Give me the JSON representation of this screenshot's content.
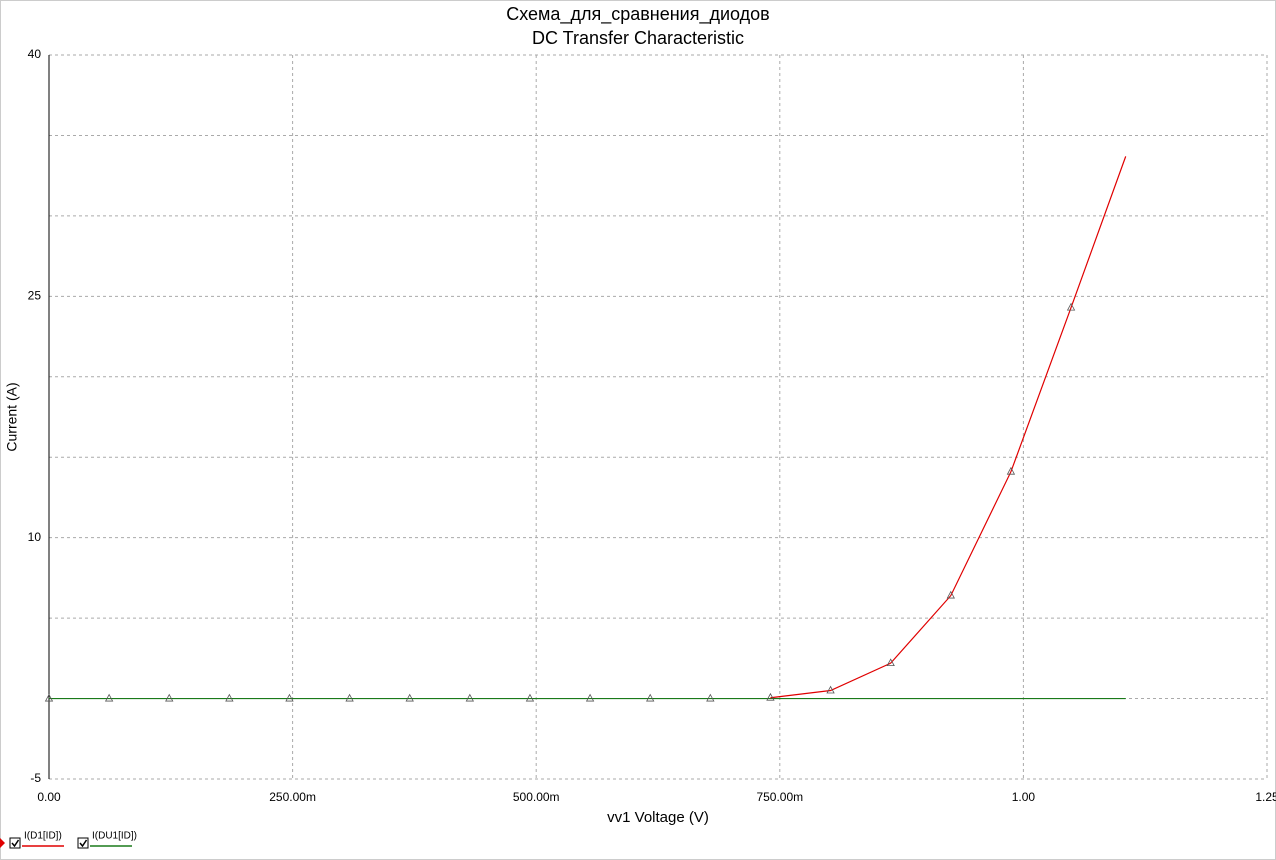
{
  "chart_data": {
    "type": "line",
    "title": "Схема_для_сравнения_диодов",
    "subtitle": "DC Transfer Characteristic",
    "x_label": "vv1 Voltage (V)",
    "y_label": "Current (A)",
    "xlim": [
      0,
      1.25
    ],
    "ylim": [
      -5,
      40
    ],
    "xticks": [
      {
        "value": 0,
        "label": "0.00"
      },
      {
        "value": 0.25,
        "label": "250.00m"
      },
      {
        "value": 0.5,
        "label": "500.00m"
      },
      {
        "value": 0.75,
        "label": "750.00m"
      },
      {
        "value": 1,
        "label": "1.00"
      },
      {
        "value": 1.25,
        "label": "1.25"
      }
    ],
    "yticks": [
      -5,
      10,
      25,
      40
    ],
    "minor_yticks": [
      0,
      5,
      15,
      20,
      30,
      35
    ],
    "grid": true,
    "legend": "bottom-left",
    "series": [
      {
        "name": "I(D1[ID])",
        "color": "#e00000",
        "x": [
          0.7404,
          0.8021,
          0.8638,
          0.9255,
          0.9872,
          1.0489,
          1.105
        ],
        "values": [
          0.05,
          0.5,
          2.2,
          6.4,
          14.1,
          24.3,
          33.7
        ]
      },
      {
        "name": "I(DU1[ID])",
        "color": "#1a7a1a",
        "x": [
          0,
          0.0617,
          0.1234,
          0.1851,
          0.2468,
          0.3085,
          0.3702,
          0.4319,
          0.4936,
          0.5553,
          0.617,
          0.6787,
          1.105
        ],
        "values": [
          0,
          0,
          0,
          0,
          0,
          0,
          0,
          0,
          0,
          0,
          0,
          0,
          0
        ]
      }
    ]
  }
}
